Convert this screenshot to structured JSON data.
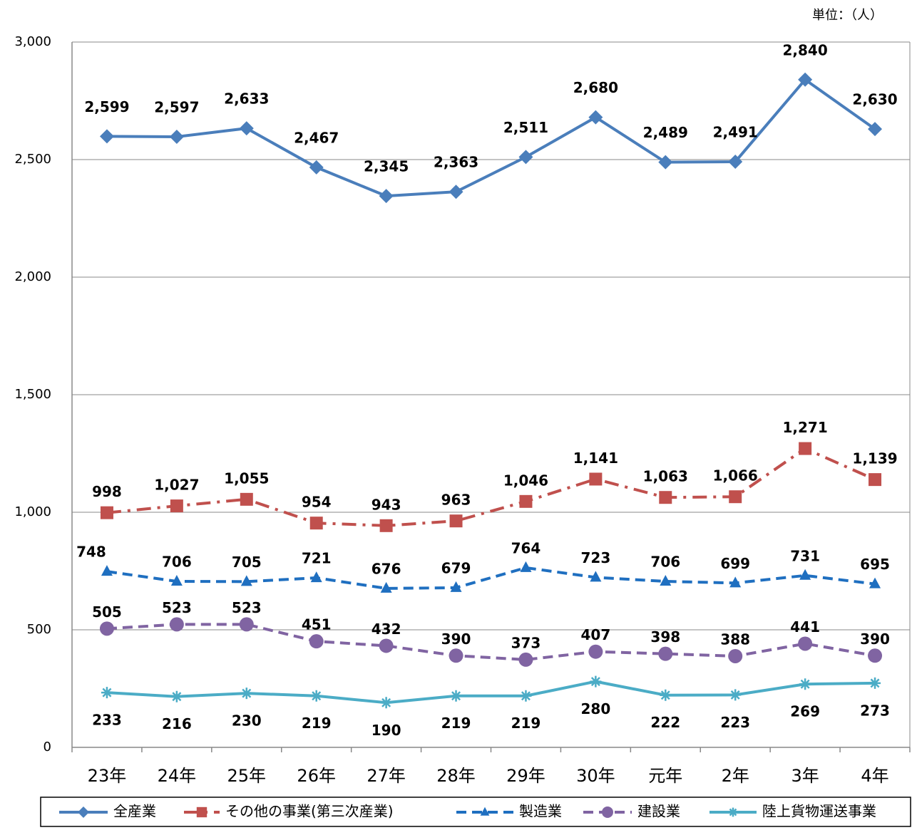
{
  "chart_data": {
    "type": "line",
    "unit_label": "単位：（人）",
    "categories": [
      "23年",
      "24年",
      "25年",
      "26年",
      "27年",
      "28年",
      "29年",
      "30年",
      "元年",
      "2年",
      "3年",
      "4年"
    ],
    "ylim": [
      0,
      3000
    ],
    "yticks": [
      0,
      500,
      {
        "value": 1000,
        "label": "1,000"
      },
      {
        "value": 1500,
        "label": "1,500"
      },
      {
        "value": 2000,
        "label": "2,000"
      },
      {
        "value": 2500,
        "label": "2,500"
      },
      {
        "value": 3000,
        "label": "3,000"
      }
    ],
    "grid": true,
    "legend": "bottom",
    "series": [
      {
        "name": "全産業",
        "color": "#4a7ebb",
        "marker": "diamond",
        "line_style": "solid",
        "values": [
          2599,
          2597,
          2633,
          2467,
          2345,
          2363,
          2511,
          2680,
          2489,
          2491,
          2840,
          2630
        ],
        "value_labels": [
          "2,599",
          "2,597",
          "2,633",
          "2,467",
          "2,345",
          "2,363",
          "2,511",
          "2,680",
          "2,489",
          "2,491",
          "2,840",
          "2,630"
        ]
      },
      {
        "name": "その他の事業(第三次産業)",
        "color": "#c0504d",
        "marker": "square",
        "line_style": "dashdot",
        "values": [
          998,
          1027,
          1055,
          954,
          943,
          963,
          1046,
          1141,
          1063,
          1066,
          1271,
          1139
        ],
        "value_labels": [
          "998",
          "1,027",
          "1,055",
          "954",
          "943",
          "963",
          "1,046",
          "1,141",
          "1,063",
          "1,066",
          "1,271",
          "1,139"
        ]
      },
      {
        "name": "製造業",
        "color": "#1f6fc0",
        "marker": "triangle",
        "line_style": "dashed",
        "values": [
          748,
          706,
          705,
          721,
          676,
          679,
          764,
          723,
          706,
          699,
          731,
          695
        ]
      },
      {
        "name": "建設業",
        "color": "#8064a2",
        "marker": "circle",
        "line_style": "dashed",
        "values": [
          505,
          523,
          523,
          451,
          432,
          390,
          373,
          407,
          398,
          388,
          441,
          390
        ]
      },
      {
        "name": "陸上貨物運送事業",
        "color": "#4bacc6",
        "marker": "asterisk",
        "line_style": "solid",
        "values": [
          233,
          216,
          230,
          219,
          190,
          219,
          219,
          280,
          222,
          223,
          269,
          273
        ]
      }
    ]
  }
}
